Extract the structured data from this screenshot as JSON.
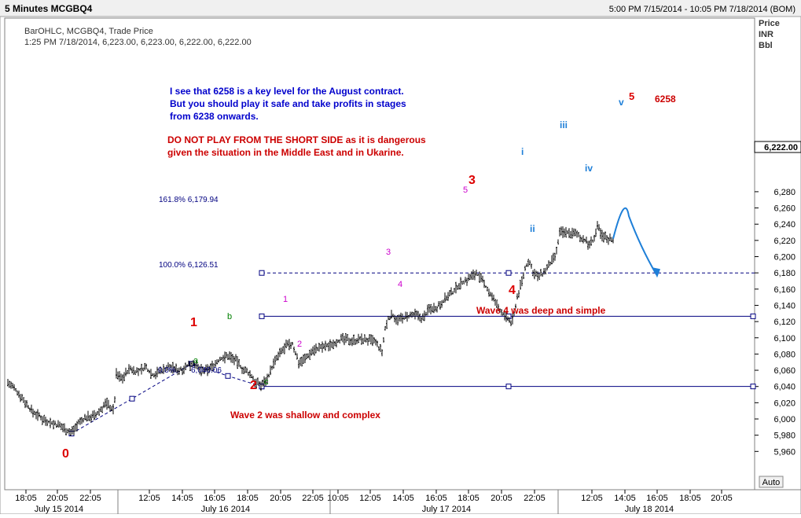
{
  "window": {
    "title": "5 Minutes MCGBQ4",
    "range": "5:00 PM 7/15/2014 - 10:05 PM 7/18/2014 (BOM)"
  },
  "legend": {
    "line1": "BarOHLC, MCGBQ4, Trade Price",
    "line2": "1:25 PM 7/18/2014, 6,223.00, 6,223.00, 6,222.00, 6,222.00"
  },
  "axis_header": {
    "line1": "Price",
    "line2": "INR",
    "line3": "Bbl"
  },
  "auto_button": "Auto",
  "current_price_label": "6,222.00",
  "annotations": {
    "blue_line1": "I see that 6258 is a key level for the August contract.",
    "blue_line2": "But you should play it safe and take profits in stages",
    "blue_line3": "from 6238 onwards.",
    "red_line1": "DO NOT PLAY FROM THE SHORT SIDE as it is dangerous",
    "red_line2": "given the situation in the Middle East and in Ukarine.",
    "wave4_note": "Wave 4 was deep and simple",
    "wave2_note": "Wave 2 was shallow and complex"
  },
  "fib": {
    "level_0_pct": "0.0%",
    "level_0_val": "6,040.06",
    "level_100": "100.0% 6,126.51",
    "level_161": "161.8% 6,179.94",
    "target_label": "6258"
  },
  "wave_labels": {
    "w0": "0",
    "w1": "1",
    "w2": "2",
    "w3": "3",
    "w4": "4",
    "w5": "5",
    "a": "a",
    "b": "b",
    "c": "c",
    "m1": "1",
    "m2": "2",
    "m3": "3",
    "m4": "4",
    "m5": "5",
    "i": "i",
    "ii": "ii",
    "iii": "iii",
    "iv": "iv",
    "v": "v"
  },
  "colors": {
    "bars": "#000000",
    "fib_line": "#000080",
    "blue_text": "#0000cc",
    "red_text": "#cc0000",
    "green_label": "#008000",
    "magenta_label": "#cc00cc",
    "projection": "#1e7fd8"
  },
  "chart_data": {
    "type": "bar",
    "style": "OHLC",
    "x_tick_labels": [
      "18:05",
      "20:05",
      "22:05",
      "12:05",
      "14:05",
      "16:05",
      "18:05",
      "20:05",
      "22:05",
      "10:05",
      "12:05",
      "14:05",
      "16:05",
      "18:05",
      "20:05",
      "22:05",
      "12:05",
      "14:05",
      "16:05",
      "18:05",
      "20:05"
    ],
    "date_labels": [
      "July 15 2014",
      "July 16 2014",
      "July 17 2014",
      "July 18 2014"
    ],
    "y_ticks": [
      5960,
      5980,
      6000,
      6020,
      6040,
      6060,
      6080,
      6100,
      6120,
      6140,
      6160,
      6180,
      6200,
      6220,
      6240,
      6260,
      6280
    ],
    "y_tick_labels": [
      "5,960",
      "5,980",
      "6,000",
      "6,020",
      "6,040",
      "6,060",
      "6,080",
      "6,100",
      "6,120",
      "6,140",
      "6,160",
      "6,180",
      "6,200",
      "6,220",
      "6,240",
      "6,260",
      "6,280"
    ],
    "ylim": [
      5945,
      6308
    ],
    "grid": false,
    "last_price": 6222,
    "fib_levels": [
      6040.06,
      6126.51,
      6179.94
    ],
    "price_path": [
      [
        0,
        6035
      ],
      [
        10,
        6045
      ],
      [
        25,
        6030
      ],
      [
        40,
        6010
      ],
      [
        55,
        6000
      ],
      [
        68,
        5994
      ],
      [
        80,
        5990
      ],
      [
        90,
        5983
      ],
      [
        100,
        5995
      ],
      [
        110,
        6002
      ],
      [
        122,
        6004
      ],
      [
        135,
        6020
      ],
      [
        145,
        6010
      ],
      [
        148,
        6055
      ],
      [
        155,
        6050
      ],
      [
        165,
        6062
      ],
      [
        175,
        6058
      ],
      [
        185,
        6064
      ],
      [
        195,
        6054
      ],
      [
        205,
        6060
      ],
      [
        215,
        6064
      ],
      [
        228,
        6060
      ],
      [
        238,
        6065
      ],
      [
        246,
        6070
      ],
      [
        252,
        6062
      ],
      [
        260,
        6058
      ],
      [
        270,
        6065
      ],
      [
        282,
        6075
      ],
      [
        292,
        6078
      ],
      [
        300,
        6072
      ],
      [
        310,
        6060
      ],
      [
        318,
        6055
      ],
      [
        326,
        6044
      ],
      [
        332,
        6042
      ],
      [
        340,
        6050
      ],
      [
        348,
        6068
      ],
      [
        356,
        6080
      ],
      [
        364,
        6090
      ],
      [
        372,
        6092
      ],
      [
        380,
        6070
      ],
      [
        390,
        6076
      ],
      [
        398,
        6085
      ],
      [
        408,
        6088
      ],
      [
        418,
        6090
      ],
      [
        428,
        6096
      ],
      [
        436,
        6098
      ],
      [
        448,
        6097
      ],
      [
        460,
        6098
      ],
      [
        476,
        6096
      ],
      [
        486,
        6082
      ],
      [
        490,
        6110
      ],
      [
        494,
        6124
      ],
      [
        500,
        6128
      ],
      [
        506,
        6122
      ],
      [
        512,
        6124
      ],
      [
        520,
        6126
      ],
      [
        528,
        6128
      ],
      [
        538,
        6124
      ],
      [
        546,
        6136
      ],
      [
        556,
        6138
      ],
      [
        566,
        6148
      ],
      [
        576,
        6156
      ],
      [
        584,
        6166
      ],
      [
        592,
        6170
      ],
      [
        600,
        6176
      ],
      [
        606,
        6180
      ],
      [
        612,
        6172
      ],
      [
        620,
        6160
      ],
      [
        626,
        6150
      ],
      [
        632,
        6140
      ],
      [
        638,
        6132
      ],
      [
        644,
        6125
      ],
      [
        650,
        6118
      ],
      [
        654,
        6130
      ],
      [
        658,
        6150
      ],
      [
        664,
        6170
      ],
      [
        668,
        6184
      ],
      [
        672,
        6195
      ],
      [
        678,
        6182
      ],
      [
        684,
        6175
      ],
      [
        690,
        6178
      ],
      [
        698,
        6188
      ],
      [
        706,
        6200
      ],
      [
        708,
        6205
      ],
      [
        712,
        6230
      ],
      [
        722,
        6230
      ],
      [
        732,
        6228
      ],
      [
        742,
        6222
      ],
      [
        748,
        6215
      ],
      [
        755,
        6220
      ],
      [
        760,
        6236
      ],
      [
        766,
        6226
      ],
      [
        774,
        6222
      ],
      [
        780,
        6222
      ]
    ],
    "projection": [
      [
        780,
        6222
      ],
      [
        800,
        6250
      ],
      [
        835,
        6178
      ]
    ]
  }
}
